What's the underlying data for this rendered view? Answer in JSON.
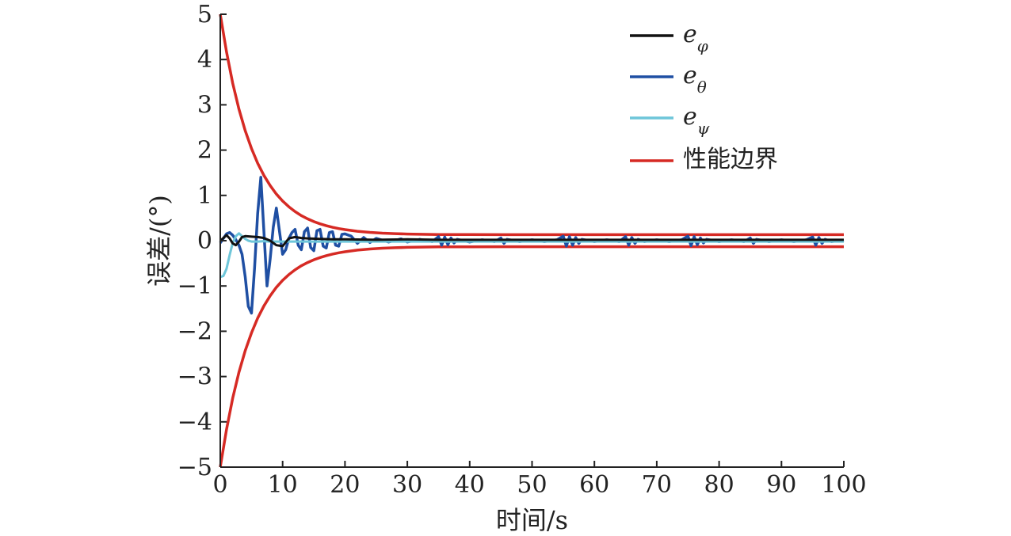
{
  "chart_data": {
    "type": "line",
    "xlabel": "时间/s",
    "ylabel": "误差/(°)",
    "xlim": [
      0,
      100
    ],
    "ylim": [
      -5,
      5
    ],
    "xticks": [
      0,
      10,
      20,
      30,
      40,
      50,
      60,
      70,
      80,
      90,
      100
    ],
    "yticks": [
      5,
      4,
      3,
      2,
      1,
      0,
      -1,
      -2,
      -3,
      -4,
      -5
    ],
    "xtick_labels": [
      "0",
      "10",
      "20",
      "30",
      "40",
      "50",
      "60",
      "70",
      "80",
      "90",
      "100"
    ],
    "ytick_labels": [
      "5",
      "4",
      "3",
      "2",
      "1",
      "0",
      "−1",
      "−2",
      "−3",
      "−4",
      "−5"
    ],
    "legend_position": "top-right",
    "grid": false,
    "series": [
      {
        "name": "e_phi",
        "legend_base": "e",
        "legend_sub": "φ",
        "color": "#111111",
        "x": [
          0,
          0.5,
          1,
          1.5,
          2,
          2.5,
          3,
          3.5,
          4,
          5,
          6,
          7,
          8,
          9,
          10,
          11,
          12,
          13,
          14,
          16,
          18,
          20,
          25,
          30,
          35,
          40,
          45,
          50,
          55,
          60,
          65,
          70,
          75,
          80,
          85,
          90,
          95,
          100
        ],
        "y": [
          0.0,
          0.06,
          0.12,
          0.05,
          -0.06,
          -0.1,
          -0.02,
          0.08,
          0.1,
          0.09,
          0.08,
          0.06,
          0.0,
          -0.1,
          -0.12,
          0.05,
          0.08,
          0.06,
          0.05,
          0.04,
          0.03,
          0.03,
          0.02,
          0.03,
          0.02,
          0.02,
          0.02,
          0.02,
          0.02,
          0.02,
          0.02,
          0.02,
          0.02,
          0.02,
          0.02,
          0.02,
          0.02,
          0.02
        ]
      },
      {
        "name": "e_theta",
        "legend_base": "e",
        "legend_sub": "θ",
        "color": "#1f4fa3",
        "x": [
          0,
          0.5,
          1,
          1.5,
          2,
          2.5,
          3,
          3.5,
          4,
          4.5,
          5,
          5.5,
          6,
          6.5,
          7,
          7.5,
          8,
          8.5,
          9,
          9.5,
          10,
          10.5,
          11,
          11.5,
          12,
          12.5,
          13,
          13.5,
          14,
          14.5,
          15,
          15.5,
          16,
          16.5,
          17,
          17.5,
          18,
          18.5,
          19,
          19.5,
          20,
          21,
          22,
          23,
          24,
          25,
          27,
          29,
          30,
          32,
          34,
          35,
          35.5,
          36,
          36.5,
          37,
          37.5,
          38,
          40,
          42,
          44,
          45,
          45.5,
          46,
          48,
          50,
          52,
          54,
          55,
          55.5,
          56,
          56.5,
          57,
          57.5,
          58,
          60,
          62,
          64,
          65,
          65.5,
          66,
          66.5,
          67,
          68,
          70,
          72,
          74,
          75,
          75.5,
          76,
          76.5,
          77,
          77.5,
          78,
          80,
          82,
          84,
          85,
          85.5,
          86,
          88,
          90,
          92,
          94,
          95,
          95.5,
          96,
          96.5,
          97,
          98,
          100
        ],
        "y": [
          -0.05,
          0.05,
          0.15,
          0.18,
          0.12,
          0.02,
          -0.1,
          -0.3,
          -0.8,
          -1.45,
          -1.6,
          -0.6,
          0.6,
          1.4,
          0.2,
          -1.0,
          -0.4,
          0.3,
          0.72,
          0.2,
          -0.3,
          -0.2,
          0.05,
          0.18,
          0.25,
          -0.1,
          -0.2,
          0.2,
          0.28,
          -0.15,
          -0.22,
          0.22,
          0.25,
          -0.12,
          -0.16,
          0.18,
          0.2,
          -0.1,
          -0.12,
          0.14,
          0.15,
          0.1,
          -0.06,
          0.07,
          -0.04,
          0.05,
          -0.03,
          0.04,
          -0.03,
          0.03,
          -0.02,
          0.09,
          -0.1,
          0.08,
          -0.09,
          0.06,
          -0.05,
          0.03,
          -0.03,
          0.02,
          -0.02,
          0.06,
          -0.06,
          0.03,
          -0.02,
          0.02,
          -0.02,
          0.02,
          0.1,
          -0.12,
          0.09,
          -0.1,
          0.07,
          -0.06,
          0.03,
          -0.02,
          0.02,
          -0.02,
          0.09,
          -0.1,
          0.07,
          -0.06,
          0.03,
          -0.02,
          0.02,
          -0.02,
          0.02,
          0.1,
          -0.11,
          0.09,
          -0.09,
          0.06,
          -0.05,
          0.03,
          -0.02,
          0.02,
          -0.02,
          0.06,
          -0.06,
          0.03,
          -0.02,
          0.02,
          -0.02,
          0.02,
          0.08,
          -0.1,
          0.07,
          -0.06,
          0.03,
          -0.02,
          0.01
        ]
      },
      {
        "name": "e_psi",
        "legend_base": "e",
        "legend_sub": "ψ",
        "color": "#6ec6d9",
        "x": [
          0,
          0.5,
          1,
          1.5,
          2,
          2.5,
          3,
          3.5,
          4,
          4.5,
          5,
          6,
          7,
          8,
          10,
          15,
          20,
          30,
          40,
          50,
          60,
          70,
          80,
          90,
          100
        ],
        "y": [
          -0.8,
          -0.78,
          -0.62,
          -0.32,
          -0.05,
          0.1,
          0.16,
          0.1,
          0.04,
          0.0,
          -0.02,
          -0.02,
          -0.01,
          -0.02,
          -0.02,
          -0.02,
          -0.02,
          -0.02,
          -0.02,
          -0.02,
          -0.02,
          -0.02,
          -0.02,
          -0.02,
          -0.02
        ]
      },
      {
        "name": "性能边界",
        "legend_base": "性能边界",
        "legend_sub": "",
        "color": "#d62a24",
        "envelope": true,
        "x": [
          0,
          1,
          2,
          3,
          4,
          5,
          6,
          7,
          8,
          9,
          10,
          11,
          12,
          13,
          14,
          15,
          16,
          17,
          18,
          19,
          20,
          22,
          24,
          26,
          28,
          30,
          35,
          40,
          50,
          60,
          70,
          80,
          90,
          100
        ],
        "y_upper": [
          5.0,
          4.167,
          3.477,
          2.904,
          2.429,
          2.036,
          1.71,
          1.44,
          1.216,
          1.03,
          0.876,
          0.749,
          0.643,
          0.555,
          0.482,
          0.422,
          0.372,
          0.33,
          0.296,
          0.268,
          0.244,
          0.208,
          0.183,
          0.166,
          0.155,
          0.147,
          0.137,
          0.134,
          0.132,
          0.132,
          0.132,
          0.132,
          0.132,
          0.132
        ],
        "y_lower": [
          -5.0,
          -4.167,
          -3.477,
          -2.904,
          -2.429,
          -2.036,
          -1.71,
          -1.44,
          -1.216,
          -1.03,
          -0.876,
          -0.749,
          -0.643,
          -0.555,
          -0.482,
          -0.422,
          -0.372,
          -0.33,
          -0.296,
          -0.268,
          -0.244,
          -0.208,
          -0.183,
          -0.166,
          -0.155,
          -0.147,
          -0.137,
          -0.134,
          -0.132,
          -0.132,
          -0.132,
          -0.132,
          -0.132,
          -0.132
        ]
      }
    ]
  }
}
